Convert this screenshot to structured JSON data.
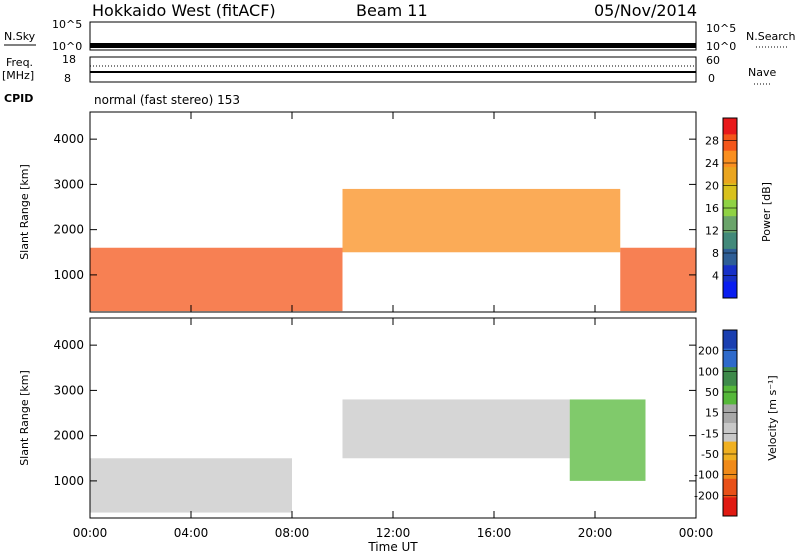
{
  "header": {
    "station": "Hokkaido West (fitACF)",
    "beam": "Beam 11",
    "date": "05/Nov/2014"
  },
  "noise_panel": {
    "left_label": "N.Sky",
    "left_ticks": [
      "10^5",
      "10^0"
    ],
    "right_ticks": [
      "10^5",
      "10^0"
    ],
    "right_label": "N.Search"
  },
  "freq_panel": {
    "label_line1": "Freq.",
    "label_line2": "[MHz]",
    "left_ticks": [
      "18",
      "8"
    ],
    "right_ticks": [
      "60",
      "0"
    ],
    "right_label": "Nave"
  },
  "cpid_panel": {
    "label": "CPID",
    "text": "normal (fast stereo) 153"
  },
  "power_panel": {
    "ylabel": "Slant Range [km]",
    "colorbar_label": "Power [dB]",
    "colorbar_ticks": [
      "28",
      "24",
      "20",
      "16",
      "12",
      "8",
      "4"
    ],
    "colorbar_colors": [
      "#e8191b",
      "#f4561a",
      "#fa8f1f",
      "#eaa51f",
      "#d8c11d",
      "#8fd244",
      "#6aa46a",
      "#42897a",
      "#2e5e96",
      "#1730c7",
      "#0a1ef0"
    ]
  },
  "velocity_panel": {
    "ylabel": "Slant Range [km]",
    "colorbar_label": "Velocity [m s⁻¹]",
    "colorbar_ticks": [
      "200",
      "100",
      "50",
      "15",
      "-15",
      "-50",
      "-100",
      "-200"
    ],
    "colorbar_colors": [
      "#1a3fb0",
      "#2e6acb",
      "#3e8a4a",
      "#56b83a",
      "#a8a8a8",
      "#c8c8c8",
      "#f0b020",
      "#f08a18",
      "#e85018",
      "#e01a12"
    ]
  },
  "x_axis": {
    "label": "Time UT"
  },
  "chart_data": {
    "type": "heatmap",
    "title": "Hokkaido West (fitACF)",
    "xlabel": "Time UT",
    "ylabel": "Slant Range [km]",
    "x_ticks": [
      "00:00",
      "04:00",
      "08:00",
      "12:00",
      "16:00",
      "20:00",
      "00:00"
    ],
    "y_ticks": [
      1000,
      2000,
      3000,
      4000
    ],
    "ylim": [
      180,
      4600
    ],
    "xlim_hours": [
      0,
      24
    ],
    "panels": [
      {
        "name": "Power",
        "unit": "dB",
        "colorbar_range": [
          0,
          32
        ],
        "regions": [
          {
            "t_start": 0,
            "t_end": 10,
            "range_min": 200,
            "range_max": 1600,
            "level_db": 28
          },
          {
            "t_start": 10,
            "t_end": 21,
            "range_min": 1500,
            "range_max": 2900,
            "level_db": 26
          },
          {
            "t_start": 21,
            "t_end": 24,
            "range_min": 200,
            "range_max": 1600,
            "level_db": 28
          }
        ]
      },
      {
        "name": "Velocity",
        "unit": "m/s",
        "colorbar_range": [
          -250,
          250
        ],
        "regions": [
          {
            "t_start": 0,
            "t_end": 8,
            "range_min": 300,
            "range_max": 1500,
            "velocity": -10
          },
          {
            "t_start": 10,
            "t_end": 19,
            "range_min": 1500,
            "range_max": 2800,
            "velocity": -10
          },
          {
            "t_start": 19,
            "t_end": 22,
            "range_min": 1000,
            "range_max": 2800,
            "velocity": 60
          }
        ]
      }
    ]
  }
}
